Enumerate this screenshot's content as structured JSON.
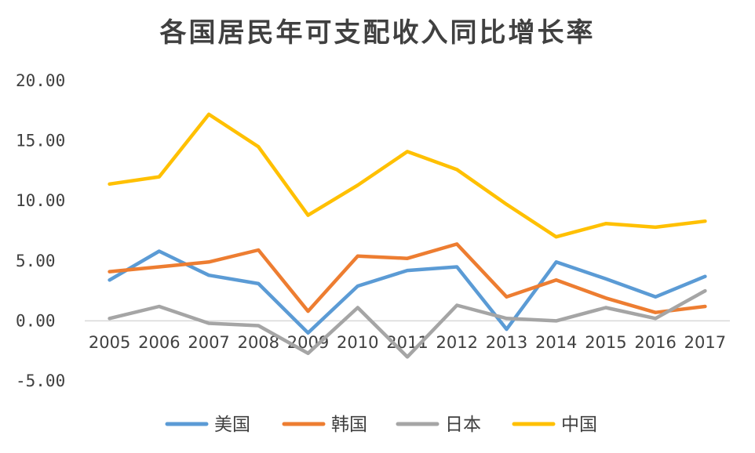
{
  "chart_data": {
    "type": "line",
    "title": "各国居民年可支配收入同比增长率",
    "xlabel": "",
    "ylabel": "",
    "categories": [
      "2005",
      "2006",
      "2007",
      "2008",
      "2009",
      "2010",
      "2011",
      "2012",
      "2013",
      "2014",
      "2015",
      "2016",
      "2017"
    ],
    "ylim": [
      -5,
      20
    ],
    "yticks": [
      -5,
      0,
      5,
      10,
      15,
      20
    ],
    "ytick_labels": [
      "-5.00",
      "0.00",
      "5.00",
      "10.00",
      "15.00",
      "20.00"
    ],
    "grid": false,
    "legend_position": "bottom",
    "series": [
      {
        "name": "美国",
        "color": "#5B9BD5",
        "values": [
          3.4,
          5.8,
          3.8,
          3.1,
          -1.0,
          2.9,
          4.2,
          4.5,
          -0.7,
          4.9,
          3.5,
          2.0,
          3.7
        ]
      },
      {
        "name": "韩国",
        "color": "#ED7D31",
        "values": [
          4.1,
          4.5,
          4.9,
          5.9,
          0.8,
          5.4,
          5.2,
          6.4,
          2.0,
          3.4,
          1.9,
          0.7,
          1.2
        ]
      },
      {
        "name": "日本",
        "color": "#A5A5A5",
        "values": [
          0.2,
          1.2,
          -0.2,
          -0.4,
          -2.7,
          1.1,
          -3.0,
          1.3,
          0.2,
          0.0,
          1.1,
          0.2,
          2.5
        ]
      },
      {
        "name": "中国",
        "color": "#FFC000",
        "values": [
          11.4,
          12.0,
          17.2,
          14.5,
          8.8,
          11.3,
          14.1,
          12.6,
          9.7,
          7.0,
          8.1,
          7.8,
          8.3
        ]
      }
    ]
  }
}
